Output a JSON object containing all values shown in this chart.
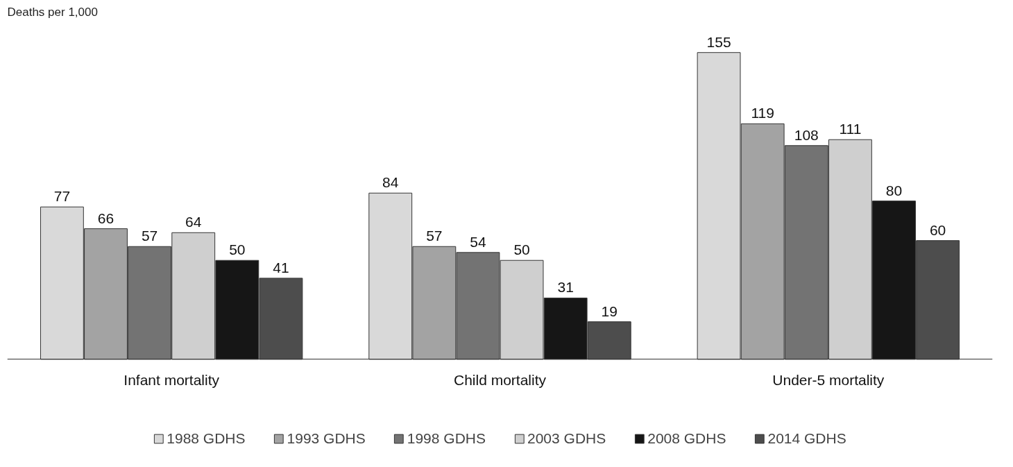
{
  "chart_data": {
    "type": "bar",
    "ylabel": "Deaths per 1,000",
    "categories": [
      "Infant mortality",
      "Child mortality",
      "Under-5 mortality"
    ],
    "series": [
      {
        "name": "1988 GDHS",
        "color": "#d9d9d9",
        "values": [
          77,
          84,
          155
        ]
      },
      {
        "name": "1993 GDHS",
        "color": "#a3a3a3",
        "values": [
          66,
          57,
          119
        ]
      },
      {
        "name": "1998 GDHS",
        "color": "#737373",
        "values": [
          57,
          54,
          108
        ]
      },
      {
        "name": "2003 GDHS",
        "color": "#cfcfcf",
        "values": [
          64,
          50,
          111
        ]
      },
      {
        "name": "2008 GDHS",
        "color": "#161616",
        "values": [
          50,
          31,
          80
        ]
      },
      {
        "name": "2014 GDHS",
        "color": "#4d4d4d",
        "values": [
          41,
          19,
          60
        ]
      }
    ],
    "data_labels": true,
    "grid": false,
    "legend": "bottom"
  }
}
